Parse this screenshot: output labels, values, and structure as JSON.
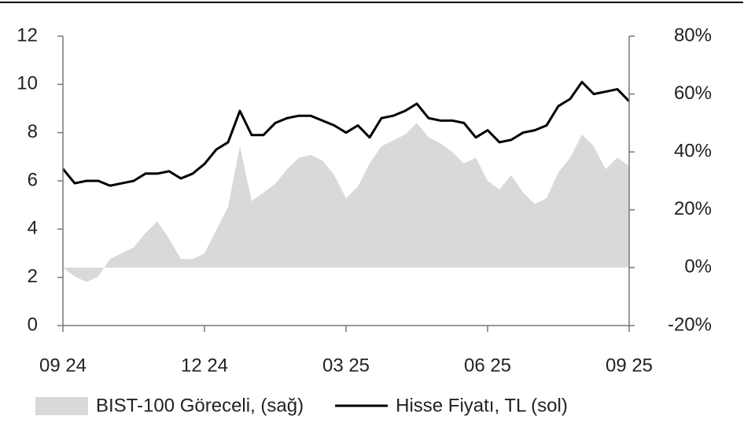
{
  "chart_data": {
    "type": "line",
    "categories": [
      "09 24",
      null,
      null,
      null,
      null,
      null,
      null,
      null,
      null,
      null,
      null,
      null,
      "12 24",
      null,
      null,
      null,
      null,
      null,
      null,
      null,
      null,
      null,
      null,
      null,
      "03 25",
      null,
      null,
      null,
      null,
      null,
      null,
      null,
      null,
      null,
      null,
      null,
      "06 25",
      null,
      null,
      null,
      null,
      null,
      null,
      null,
      null,
      null,
      null,
      null,
      "09 25"
    ],
    "series": [
      {
        "name": "BIST-100 Göreceli, (sağ)",
        "type": "area",
        "color": "#d9d9d9",
        "axis": "y2",
        "values": [
          0,
          -3,
          -5,
          -3,
          3,
          5,
          7,
          12,
          16,
          10,
          3,
          3,
          5,
          13,
          21,
          42,
          23,
          26,
          29,
          34,
          38,
          39,
          37,
          32,
          24,
          28,
          36,
          42,
          44,
          46,
          50,
          45,
          43,
          40,
          36,
          38,
          30,
          27,
          32,
          26,
          22,
          24,
          33,
          38,
          46,
          42,
          34,
          38,
          35
        ]
      },
      {
        "name": "Hisse Fiyatı, TL (sol)",
        "type": "line",
        "color": "#000000",
        "values": [
          6.5,
          5.9,
          6.0,
          6.0,
          5.8,
          5.9,
          6.0,
          6.3,
          6.3,
          6.4,
          6.1,
          6.3,
          6.7,
          7.3,
          7.6,
          8.9,
          7.9,
          7.9,
          8.4,
          8.6,
          8.7,
          8.7,
          8.5,
          8.3,
          8.0,
          8.3,
          7.8,
          8.6,
          8.7,
          8.9,
          9.2,
          8.6,
          8.5,
          8.5,
          8.4,
          7.8,
          8.1,
          7.6,
          7.7,
          8.0,
          8.1,
          8.3,
          9.1,
          9.4,
          10.1,
          9.6,
          9.7,
          9.8,
          9.3
        ]
      }
    ],
    "ylim": [
      0,
      12
    ],
    "yticks": [
      0,
      2,
      4,
      6,
      8,
      10,
      12
    ],
    "y2lim": [
      -20,
      80
    ],
    "y2ticks": [
      {
        "value": -20,
        "label": "-20%"
      },
      {
        "value": 0,
        "label": "0%"
      },
      {
        "value": 20,
        "label": "20%"
      },
      {
        "value": 40,
        "label": "40%"
      },
      {
        "value": 60,
        "label": "60%"
      },
      {
        "value": 80,
        "label": "80%"
      }
    ],
    "legend": "bottom"
  }
}
